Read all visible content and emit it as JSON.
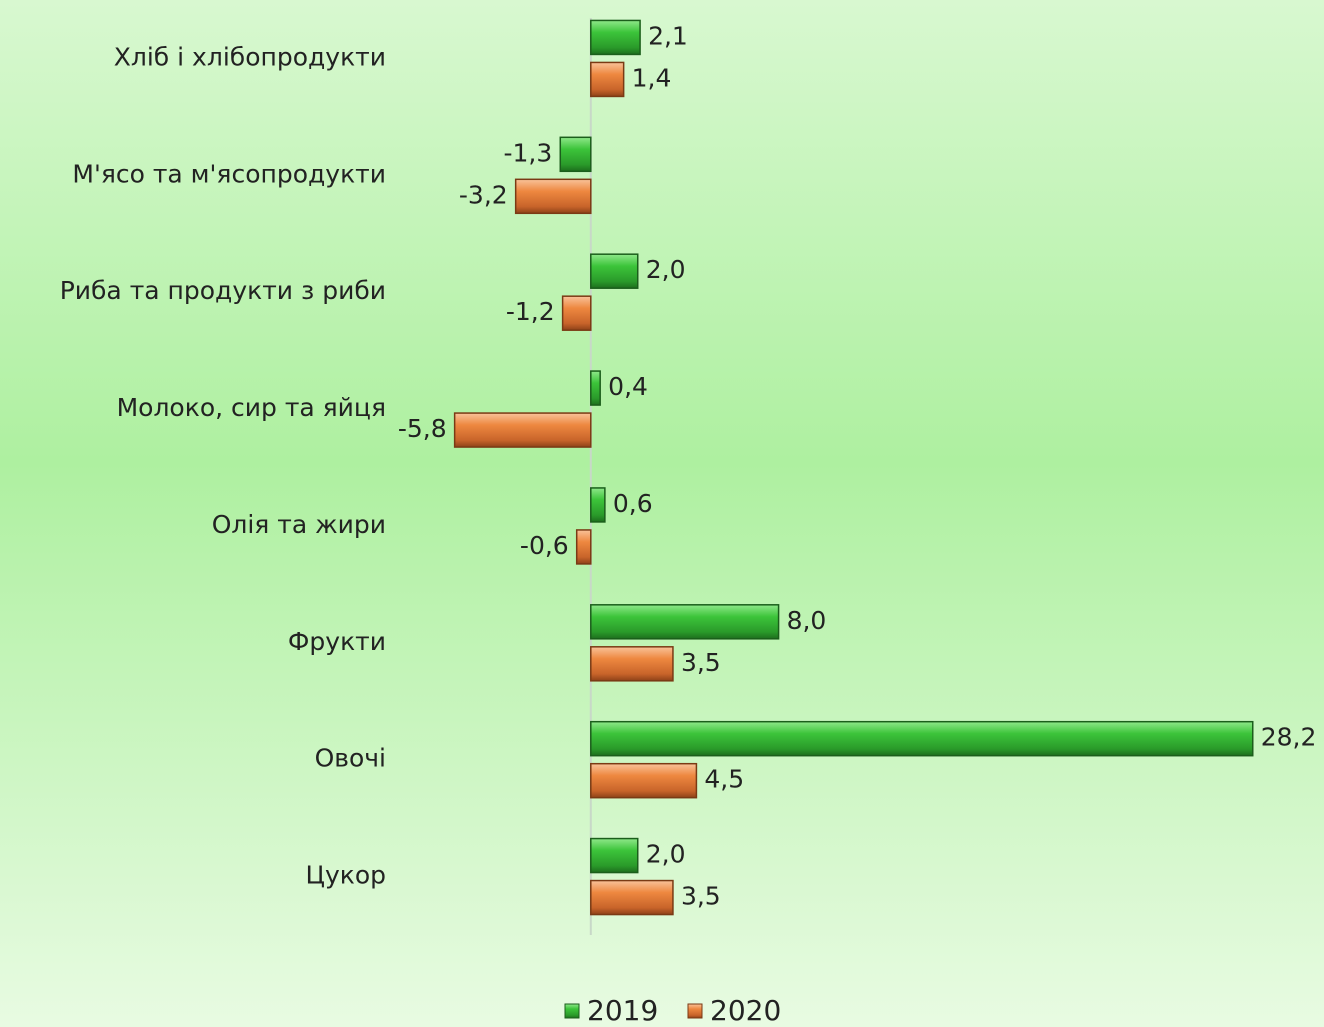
{
  "chart_data": {
    "type": "hbar",
    "categories": [
      "Хліб і хлібопродукти",
      "М'ясо та м'ясопродукти",
      "Риба та продукти з риби",
      "Молоко, сир та яйця",
      "Олія та жири",
      "Фрукти",
      "Овочі",
      "Цукор"
    ],
    "series": [
      {
        "name": "2019",
        "color": "#3cc43a",
        "values": [
          2.1,
          -1.3,
          2.0,
          0.4,
          0.6,
          8.0,
          28.2,
          2.0
        ],
        "value_labels": [
          "2,1",
          "-1,3",
          "2,0",
          "0,4",
          "0,6",
          "8,0",
          "28,2",
          "2,0"
        ]
      },
      {
        "name": "2020",
        "color": "#ee8840",
        "values": [
          1.4,
          -3.2,
          -1.2,
          -5.8,
          -0.6,
          3.5,
          4.5,
          3.5
        ],
        "value_labels": [
          "1,4",
          "-3,2",
          "-1,2",
          "-5,8",
          "-0,6",
          "3,5",
          "4,5",
          "3,5"
        ]
      }
    ],
    "xlim": [
      -8,
      30
    ],
    "legend": "bottom"
  }
}
